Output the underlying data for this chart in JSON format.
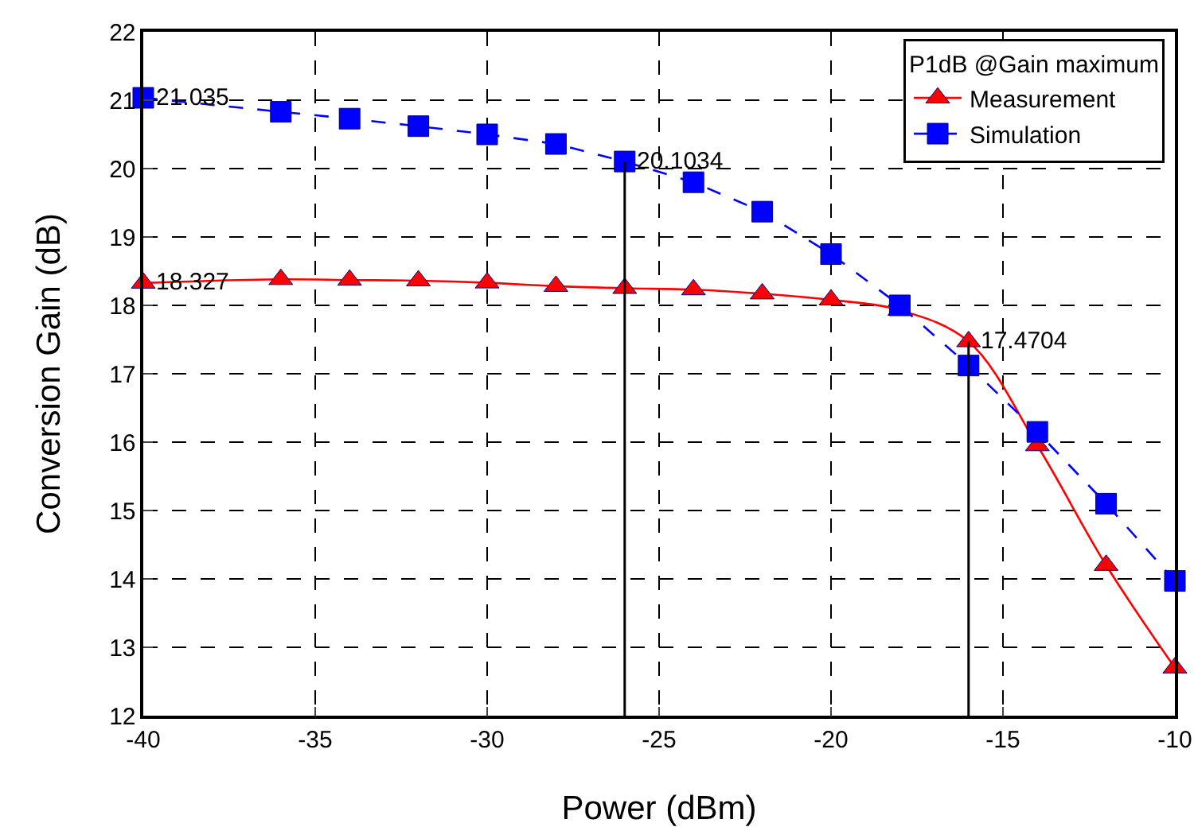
{
  "chart_data": {
    "type": "line",
    "xlabel": "Power (dBm)",
    "ylabel": "Conversion Gain (dB)",
    "legend_title": "P1dB @Gain maximum",
    "x": [
      -40,
      -36,
      -34,
      -32,
      -30,
      -28,
      -26,
      -24,
      -22,
      -20,
      -18,
      -16,
      -14,
      -12,
      -10
    ],
    "series": [
      {
        "name": "Measurement",
        "color": "#ff0000",
        "marker": "triangle",
        "line_style": "solid",
        "values": [
          18.327,
          18.38,
          18.37,
          18.36,
          18.33,
          18.28,
          18.25,
          18.23,
          18.17,
          18.08,
          17.93,
          17.4704,
          15.95,
          14.2,
          12.7
        ]
      },
      {
        "name": "Simulation",
        "color": "#0000ff",
        "marker": "square",
        "line_style": "dashed",
        "values": [
          21.035,
          20.83,
          20.73,
          20.62,
          20.5,
          20.36,
          20.1034,
          19.8,
          19.37,
          18.75,
          18.0,
          17.12,
          16.15,
          15.1,
          13.97
        ]
      }
    ],
    "xlim": [
      -40,
      -10
    ],
    "xticks": [
      -40,
      -35,
      -30,
      -25,
      -20,
      -15,
      -10
    ],
    "ylim": [
      12,
      22
    ],
    "yticks": [
      12,
      13,
      14,
      15,
      16,
      17,
      18,
      19,
      20,
      21,
      22
    ],
    "ref_lines": [
      {
        "axis": "x",
        "value": -26,
        "color": "#000000"
      },
      {
        "axis": "x",
        "value": -16,
        "color": "#000000"
      }
    ],
    "annotations": [
      {
        "text": "21.035",
        "x": -40,
        "y": 21.035
      },
      {
        "text": "18.327",
        "x": -40,
        "y": 18.327
      },
      {
        "text": "20.1034",
        "x": -26,
        "y": 20.1034
      },
      {
        "text": "17.4704",
        "x": -16,
        "y": 17.4704
      }
    ],
    "grid": true,
    "legend": "top right"
  }
}
